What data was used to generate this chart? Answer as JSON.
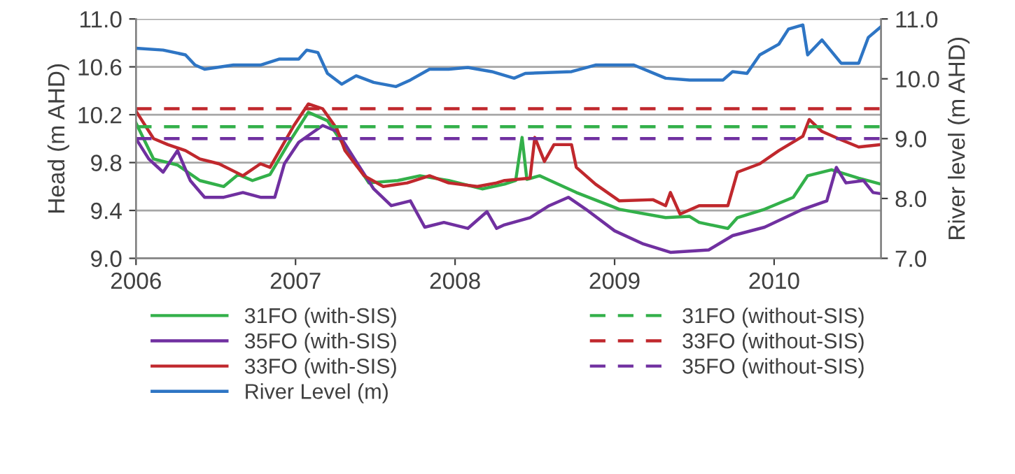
{
  "chart_data": {
    "type": "line",
    "ylabel": "Head (m AHD)",
    "y2label": "River level (m AHD)",
    "xlim": [
      2006,
      2010.67
    ],
    "xticks": [
      2006,
      2007,
      2008,
      2009,
      2010
    ],
    "ylim": [
      9.0,
      11.0
    ],
    "yticks": [
      {
        "value": 9.0,
        "label": "9.0"
      },
      {
        "value": 9.4,
        "label": "9.4"
      },
      {
        "value": 9.8,
        "label": "9.8"
      },
      {
        "value": 10.2,
        "label": "10.2"
      },
      {
        "value": 10.6,
        "label": "10.6"
      },
      {
        "value": 11.0,
        "label": "11.0"
      }
    ],
    "y2lim": [
      7.0,
      11.0
    ],
    "y2ticks": [
      {
        "value": 7.0,
        "label": "7.0"
      },
      {
        "value": 8.0,
        "label": "8.0"
      },
      {
        "value": 9.0,
        "label": "9.0"
      },
      {
        "value": 10.0,
        "label": "10.0"
      },
      {
        "value": 11.0,
        "label": "11.0"
      }
    ],
    "grid": "y",
    "legend": "bottom",
    "series": [
      {
        "name": "31FO (with-SIS)",
        "color": "#33b04a",
        "x": [
          2006,
          2006.11,
          2006.26,
          2006.4,
          2006.55,
          2006.64,
          2006.73,
          2006.84,
          2006.96,
          2007.08,
          2007.2,
          2007.31,
          2007.46,
          2007.64,
          2007.78,
          2007.96,
          2008.17,
          2008.31,
          2008.38,
          2008.42,
          2008.45,
          2008.53,
          2008.76,
          2009.03,
          2009.32,
          2009.47,
          2009.53,
          2009.71,
          2009.77,
          2009.94,
          2010.12,
          2010.21,
          2010.36,
          2010.53,
          2010.67
        ],
        "values": [
          10.13,
          9.83,
          9.78,
          9.65,
          9.6,
          9.7,
          9.65,
          9.7,
          9.97,
          10.22,
          10.15,
          9.93,
          9.63,
          9.65,
          9.69,
          9.65,
          9.58,
          9.62,
          9.65,
          10.01,
          9.66,
          9.69,
          9.55,
          9.41,
          9.34,
          9.35,
          9.3,
          9.25,
          9.34,
          9.41,
          9.51,
          9.69,
          9.74,
          9.67,
          9.62
        ]
      },
      {
        "name": "35FO (with-SIS)",
        "color": "#7030a0",
        "x": [
          2006,
          2006.08,
          2006.17,
          2006.26,
          2006.34,
          2006.43,
          2006.55,
          2006.67,
          2006.78,
          2006.87,
          2006.93,
          2007.02,
          2007.17,
          2007.26,
          2007.37,
          2007.49,
          2007.6,
          2007.72,
          2007.81,
          2007.93,
          2008.08,
          2008.2,
          2008.26,
          2008.31,
          2008.47,
          2008.59,
          2008.71,
          2008.82,
          2009.0,
          2009.18,
          2009.35,
          2009.59,
          2009.74,
          2009.94,
          2010.18,
          2010.33,
          2010.39,
          2010.45,
          2010.56,
          2010.62,
          2010.67
        ],
        "values": [
          10.0,
          9.83,
          9.72,
          9.9,
          9.65,
          9.51,
          9.51,
          9.55,
          9.51,
          9.51,
          9.79,
          9.97,
          10.11,
          10.06,
          9.83,
          9.58,
          9.44,
          9.48,
          9.26,
          9.3,
          9.25,
          9.39,
          9.25,
          9.28,
          9.34,
          9.44,
          9.51,
          9.41,
          9.23,
          9.12,
          9.05,
          9.07,
          9.19,
          9.26,
          9.41,
          9.48,
          9.76,
          9.63,
          9.65,
          9.55,
          9.54
        ]
      },
      {
        "name": "33FO (with-SIS)",
        "color": "#c0282d",
        "x": [
          2006,
          2006.11,
          2006.2,
          2006.31,
          2006.4,
          2006.52,
          2006.67,
          2006.78,
          2006.84,
          2006.9,
          2006.99,
          2007.08,
          2007.17,
          2007.26,
          2007.31,
          2007.43,
          2007.55,
          2007.7,
          2007.84,
          2007.96,
          2008.14,
          2008.26,
          2008.31,
          2008.47,
          2008.5,
          2008.56,
          2008.62,
          2008.73,
          2008.76,
          2008.88,
          2009.03,
          2009.24,
          2009.32,
          2009.35,
          2009.41,
          2009.53,
          2009.71,
          2009.77,
          2009.91,
          2010.03,
          2010.18,
          2010.22,
          2010.3,
          2010.42,
          2010.53,
          2010.67
        ],
        "values": [
          10.23,
          10.0,
          9.95,
          9.9,
          9.83,
          9.79,
          9.69,
          9.79,
          9.76,
          9.9,
          10.11,
          10.29,
          10.25,
          10.08,
          9.9,
          9.69,
          9.6,
          9.63,
          9.69,
          9.63,
          9.6,
          9.63,
          9.65,
          9.67,
          10.01,
          9.81,
          9.95,
          9.95,
          9.76,
          9.62,
          9.48,
          9.49,
          9.44,
          9.55,
          9.37,
          9.44,
          9.44,
          9.72,
          9.79,
          9.9,
          10.02,
          10.16,
          10.06,
          9.99,
          9.93,
          9.95
        ]
      },
      {
        "name": "River Level (m)",
        "color": "#2e75c4",
        "axis": "y2",
        "x": [
          2006,
          2006.17,
          2006.31,
          2006.37,
          2006.43,
          2006.61,
          2006.78,
          2006.9,
          2007.02,
          2007.07,
          2007.14,
          2007.2,
          2007.29,
          2007.38,
          2007.49,
          2007.63,
          2007.72,
          2007.84,
          2007.96,
          2008.08,
          2008.23,
          2008.37,
          2008.44,
          2008.73,
          2008.88,
          2009.12,
          2009.32,
          2009.47,
          2009.68,
          2009.74,
          2009.83,
          2009.91,
          2010.03,
          2010.09,
          2010.18,
          2010.21,
          2010.3,
          2010.42,
          2010.53,
          2010.59,
          2010.67
        ],
        "values": [
          10.51,
          10.48,
          10.4,
          10.23,
          10.16,
          10.23,
          10.23,
          10.33,
          10.33,
          10.48,
          10.44,
          10.09,
          9.91,
          10.05,
          9.94,
          9.87,
          9.98,
          10.16,
          10.16,
          10.19,
          10.12,
          10.01,
          10.09,
          10.12,
          10.23,
          10.23,
          10.01,
          9.98,
          9.98,
          10.12,
          10.09,
          10.4,
          10.58,
          10.83,
          10.9,
          10.4,
          10.65,
          10.26,
          10.26,
          10.69,
          10.87
        ]
      },
      {
        "name": "31FO (without-SIS)",
        "color": "#33b04a",
        "line_style": "dashed",
        "x": [
          2006,
          2010.67
        ],
        "values": [
          10.1,
          10.1
        ]
      },
      {
        "name": "33FO (without-SIS)",
        "color": "#c0282d",
        "line_style": "dashed",
        "x": [
          2006,
          2010.67
        ],
        "values": [
          10.25,
          10.25
        ]
      },
      {
        "name": "35FO (without-SIS)",
        "color": "#7030a0",
        "line_style": "dashed",
        "x": [
          2006,
          2010.67
        ],
        "values": [
          10.0,
          10.0
        ]
      }
    ]
  }
}
